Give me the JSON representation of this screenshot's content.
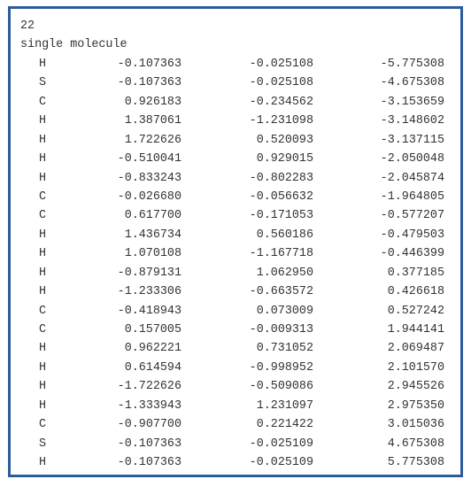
{
  "header": {
    "atom_count": "22",
    "comment": "single molecule"
  },
  "atoms": [
    {
      "element": "H",
      "x": "-0.107363",
      "y": "-0.025108",
      "z": "-5.775308"
    },
    {
      "element": "S",
      "x": "-0.107363",
      "y": "-0.025108",
      "z": "-4.675308"
    },
    {
      "element": "C",
      "x": "0.926183",
      "y": "-0.234562",
      "z": "-3.153659"
    },
    {
      "element": "H",
      "x": "1.387061",
      "y": "-1.231098",
      "z": "-3.148602"
    },
    {
      "element": "H",
      "x": "1.722626",
      "y": "0.520093",
      "z": "-3.137115"
    },
    {
      "element": "H",
      "x": "-0.510041",
      "y": "0.929015",
      "z": "-2.050048"
    },
    {
      "element": "H",
      "x": "-0.833243",
      "y": "-0.802283",
      "z": "-2.045874"
    },
    {
      "element": "C",
      "x": "-0.026680",
      "y": "-0.056632",
      "z": "-1.964805"
    },
    {
      "element": "C",
      "x": "0.617700",
      "y": "-0.171053",
      "z": "-0.577207"
    },
    {
      "element": "H",
      "x": "1.436734",
      "y": "0.560186",
      "z": "-0.479503"
    },
    {
      "element": "H",
      "x": "1.070108",
      "y": "-1.167718",
      "z": "-0.446399"
    },
    {
      "element": "H",
      "x": "-0.879131",
      "y": "1.062950",
      "z": "0.377185"
    },
    {
      "element": "H",
      "x": "-1.233306",
      "y": "-0.663572",
      "z": "0.426618"
    },
    {
      "element": "C",
      "x": "-0.418943",
      "y": "0.073009",
      "z": "0.527242"
    },
    {
      "element": "C",
      "x": "0.157005",
      "y": "-0.009313",
      "z": "1.944141"
    },
    {
      "element": "H",
      "x": "0.962221",
      "y": "0.731052",
      "z": "2.069487"
    },
    {
      "element": "H",
      "x": "0.614594",
      "y": "-0.998952",
      "z": "2.101570"
    },
    {
      "element": "H",
      "x": "-1.722626",
      "y": "-0.509086",
      "z": "2.945526"
    },
    {
      "element": "H",
      "x": "-1.333943",
      "y": "1.231097",
      "z": "2.975350"
    },
    {
      "element": "C",
      "x": "-0.907700",
      "y": "0.221422",
      "z": "3.015036"
    },
    {
      "element": "S",
      "x": "-0.107363",
      "y": "-0.025109",
      "z": "4.675308"
    },
    {
      "element": "H",
      "x": "-0.107363",
      "y": "-0.025109",
      "z": "5.775308"
    }
  ],
  "colors": {
    "border": "#2e5c9a",
    "text": "#333333",
    "background": "#ffffff"
  }
}
